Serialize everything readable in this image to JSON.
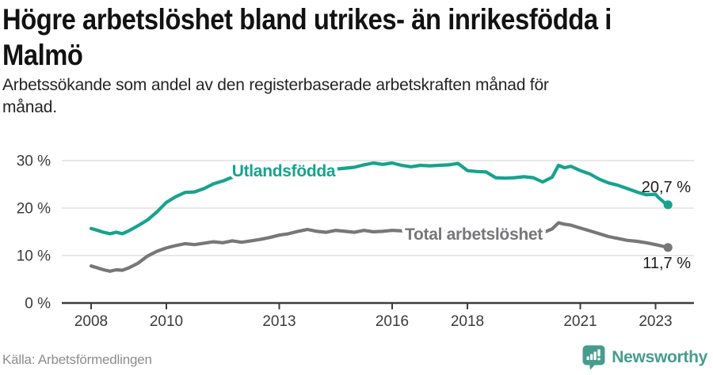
{
  "header": {
    "title": "Högre arbetslöshet bland utrikes- än inrikesfödda i Malmö",
    "title_lines": [
      "Högre arbetslöshet bland utrikes- än inrikesfödda i",
      "Malmö"
    ],
    "subtitle": "Arbetssökande som andel av den registerbaserade arbetskraften månad för månad.",
    "subtitle_lines": [
      "Arbetssökande som andel av den registerbaserade arbetskraften månad för",
      "månad."
    ]
  },
  "footer": {
    "source": "Källa: Arbetsförmedlingen",
    "brand": "Newsworthy",
    "brand_color": "#479c8e"
  },
  "chart_data": {
    "type": "line",
    "title": "Högre arbetslöshet bland utrikes- än inrikesfödda i Malmö",
    "xlabel": "",
    "ylabel": "",
    "unit": "%",
    "grid": true,
    "xlim": [
      2007.2,
      2024.0
    ],
    "ylim": [
      0,
      33
    ],
    "x_ticks": [
      2008,
      2010,
      2013,
      2016,
      2018,
      2021,
      2023
    ],
    "x_tick_labels": [
      "2008",
      "2010",
      "2013",
      "2016",
      "2018",
      "2021",
      "2023"
    ],
    "y_ticks": [
      0,
      10,
      20,
      30
    ],
    "y_tick_labels": [
      "0 %",
      "10 %",
      "20 %",
      "30 %"
    ],
    "grid_color": "#e1e1e1",
    "axis_color": "#3d3d3d",
    "tick_label_color": "#3a3a3a",
    "value_label_color": "#1b1b1b",
    "series": [
      {
        "name": "Utlandsfödda",
        "color": "#16a38e",
        "end_label": "20,7 %",
        "end_value": 20.7,
        "points": [
          [
            2008.0,
            15.7
          ],
          [
            2008.17,
            15.3
          ],
          [
            2008.33,
            14.9
          ],
          [
            2008.5,
            14.6
          ],
          [
            2008.67,
            14.9
          ],
          [
            2008.83,
            14.6
          ],
          [
            2009.0,
            15.2
          ],
          [
            2009.25,
            16.3
          ],
          [
            2009.5,
            17.5
          ],
          [
            2009.75,
            19.2
          ],
          [
            2010.0,
            21.2
          ],
          [
            2010.25,
            22.4
          ],
          [
            2010.5,
            23.3
          ],
          [
            2010.75,
            23.4
          ],
          [
            2011.0,
            24.1
          ],
          [
            2011.25,
            25.1
          ],
          [
            2011.5,
            25.7
          ],
          [
            2011.75,
            26.5
          ],
          [
            2012.0,
            26.8
          ],
          [
            2012.25,
            27.2
          ],
          [
            2012.5,
            27.2
          ],
          [
            2012.75,
            27.4
          ],
          [
            2013.0,
            27.5
          ],
          [
            2013.25,
            27.6
          ],
          [
            2013.5,
            27.7
          ],
          [
            2013.75,
            27.8
          ],
          [
            2014.0,
            27.9
          ],
          [
            2014.25,
            28.0
          ],
          [
            2014.5,
            28.2
          ],
          [
            2014.75,
            28.4
          ],
          [
            2015.0,
            28.6
          ],
          [
            2015.25,
            29.1
          ],
          [
            2015.5,
            29.5
          ],
          [
            2015.75,
            29.2
          ],
          [
            2016.0,
            29.5
          ],
          [
            2016.25,
            29.0
          ],
          [
            2016.5,
            28.7
          ],
          [
            2016.75,
            29.0
          ],
          [
            2017.0,
            28.9
          ],
          [
            2017.25,
            29.0
          ],
          [
            2017.5,
            29.1
          ],
          [
            2017.75,
            29.4
          ],
          [
            2018.0,
            27.9
          ],
          [
            2018.25,
            27.7
          ],
          [
            2018.5,
            27.6
          ],
          [
            2018.75,
            26.4
          ],
          [
            2019.0,
            26.3
          ],
          [
            2019.25,
            26.4
          ],
          [
            2019.5,
            26.6
          ],
          [
            2019.75,
            26.4
          ],
          [
            2020.0,
            25.5
          ],
          [
            2020.25,
            26.5
          ],
          [
            2020.42,
            29.0
          ],
          [
            2020.58,
            28.5
          ],
          [
            2020.75,
            28.8
          ],
          [
            2021.0,
            27.9
          ],
          [
            2021.25,
            27.2
          ],
          [
            2021.5,
            26.1
          ],
          [
            2021.75,
            25.3
          ],
          [
            2022.0,
            24.8
          ],
          [
            2022.25,
            24.1
          ],
          [
            2022.5,
            23.4
          ],
          [
            2022.75,
            22.8
          ],
          [
            2023.0,
            22.9
          ],
          [
            2023.08,
            22.2
          ],
          [
            2023.17,
            21.6
          ],
          [
            2023.25,
            21.0
          ],
          [
            2023.33,
            20.7
          ]
        ]
      },
      {
        "name": "Total arbetslöshet",
        "color": "#77777a",
        "end_label": "11,7 %",
        "end_value": 11.7,
        "points": [
          [
            2008.0,
            7.8
          ],
          [
            2008.17,
            7.4
          ],
          [
            2008.33,
            7.0
          ],
          [
            2008.5,
            6.7
          ],
          [
            2008.67,
            7.0
          ],
          [
            2008.83,
            6.9
          ],
          [
            2009.0,
            7.4
          ],
          [
            2009.25,
            8.4
          ],
          [
            2009.5,
            9.9
          ],
          [
            2009.75,
            10.9
          ],
          [
            2010.0,
            11.6
          ],
          [
            2010.25,
            12.1
          ],
          [
            2010.5,
            12.5
          ],
          [
            2010.75,
            12.3
          ],
          [
            2011.0,
            12.6
          ],
          [
            2011.25,
            12.9
          ],
          [
            2011.5,
            12.7
          ],
          [
            2011.75,
            13.1
          ],
          [
            2012.0,
            12.8
          ],
          [
            2012.25,
            13.1
          ],
          [
            2012.5,
            13.4
          ],
          [
            2012.75,
            13.8
          ],
          [
            2013.0,
            14.3
          ],
          [
            2013.25,
            14.6
          ],
          [
            2013.5,
            15.1
          ],
          [
            2013.75,
            15.5
          ],
          [
            2014.0,
            15.1
          ],
          [
            2014.25,
            14.9
          ],
          [
            2014.5,
            15.3
          ],
          [
            2014.75,
            15.1
          ],
          [
            2015.0,
            14.9
          ],
          [
            2015.25,
            15.3
          ],
          [
            2015.5,
            15.0
          ],
          [
            2015.75,
            15.1
          ],
          [
            2016.0,
            15.3
          ],
          [
            2016.5,
            15.1
          ],
          [
            2017.0,
            15.0
          ],
          [
            2017.5,
            14.9
          ],
          [
            2018.0,
            14.9
          ],
          [
            2018.5,
            14.8
          ],
          [
            2019.0,
            14.6
          ],
          [
            2019.5,
            14.5
          ],
          [
            2020.0,
            14.8
          ],
          [
            2020.25,
            15.6
          ],
          [
            2020.42,
            16.9
          ],
          [
            2020.58,
            16.6
          ],
          [
            2020.75,
            16.4
          ],
          [
            2021.0,
            15.8
          ],
          [
            2021.25,
            15.2
          ],
          [
            2021.5,
            14.6
          ],
          [
            2021.75,
            14.0
          ],
          [
            2022.0,
            13.6
          ],
          [
            2022.25,
            13.2
          ],
          [
            2022.5,
            13.0
          ],
          [
            2022.75,
            12.7
          ],
          [
            2023.0,
            12.3
          ],
          [
            2023.17,
            12.0
          ],
          [
            2023.33,
            11.7
          ]
        ]
      }
    ],
    "legend_position": "on-line-labels"
  }
}
